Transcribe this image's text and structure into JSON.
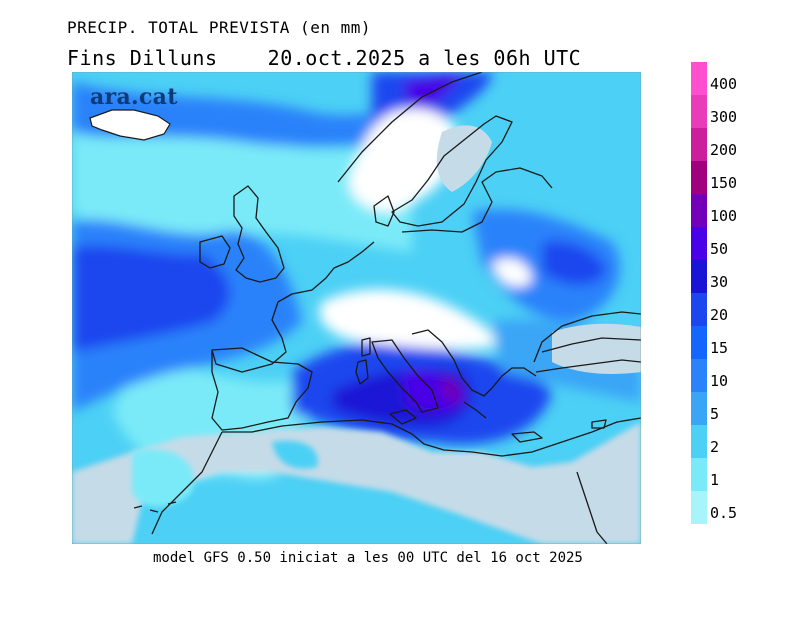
{
  "header": {
    "title": "PRECIP. TOTAL PREVISTA (en mm)",
    "period_label": "Fins Dilluns",
    "valid_time": "20.oct.2025 a les 06h UTC"
  },
  "brand": {
    "text": "ara.cat"
  },
  "footer": {
    "text": "model GFS 0.50 iniciat a les 00 UTC del 16 oct 2025"
  },
  "legend": {
    "items": [
      {
        "label": "400",
        "color": "#ff4fcf"
      },
      {
        "label": "300",
        "color": "#e83cb8"
      },
      {
        "label": "200",
        "color": "#cc1f9c"
      },
      {
        "label": "150",
        "color": "#a0007e"
      },
      {
        "label": "100",
        "color": "#7300b8"
      },
      {
        "label": "50",
        "color": "#4a00e6"
      },
      {
        "label": "30",
        "color": "#1a14d6"
      },
      {
        "label": "20",
        "color": "#1e46ef"
      },
      {
        "label": "15",
        "color": "#1466ff"
      },
      {
        "label": "10",
        "color": "#2c82fa"
      },
      {
        "label": "5",
        "color": "#3aa5f6"
      },
      {
        "label": "2",
        "color": "#4cd0f5"
      },
      {
        "label": "1",
        "color": "#7aeaf8"
      },
      {
        "label": "0.5",
        "color": "#a8f4fb"
      }
    ]
  },
  "map": {
    "land_dry_color": "#c6dbe8",
    "coast_color": "#1a1a1a"
  }
}
